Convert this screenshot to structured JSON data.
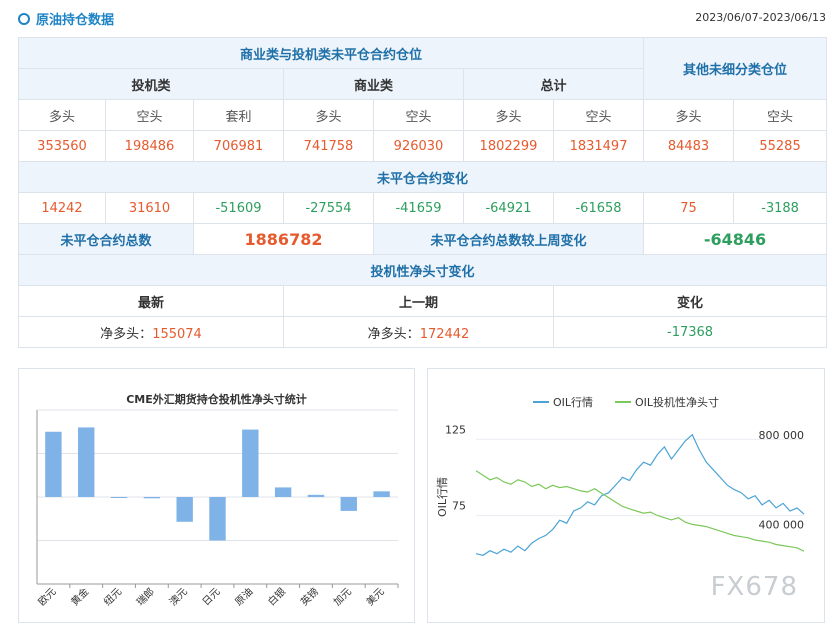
{
  "header": {
    "title": "原油持仓数据",
    "date_range": "2023/06/07-2023/06/13"
  },
  "table": {
    "group_title": "商业类与投机类未平仓合约仓位",
    "other_title": "其他未细分类仓位",
    "spec_label": "投机类",
    "comm_label": "商业类",
    "total_label": "总计",
    "cols": [
      "多头",
      "空头",
      "套利",
      "多头",
      "空头",
      "多头",
      "空头",
      "多头",
      "空头"
    ],
    "values": [
      "353560",
      "198486",
      "706981",
      "741758",
      "926030",
      "1802299",
      "1831497",
      "84483",
      "55285"
    ],
    "change_title": "未平仓合约变化",
    "changes": [
      "14242",
      "31610",
      "-51609",
      "-27554",
      "-41659",
      "-64921",
      "-61658",
      "75",
      "-3188"
    ],
    "oi_total_label": "未平仓合约总数",
    "oi_total_value": "1886782",
    "oi_change_label": "未平仓合约总数较上周变化",
    "oi_change_value": "-64846",
    "net_title": "投机性净头寸变化",
    "net_cols": [
      "最新",
      "上一期",
      "变化"
    ],
    "net_prefix": "净多头：",
    "net_latest": "155074",
    "net_prev": "172442",
    "net_change": "-17368"
  },
  "bar_chart": {
    "title": "CME外汇期货持仓投机性净头寸统计",
    "bar_color": "#7fb3e8",
    "chart_data": {
      "type": "bar",
      "categories": [
        "欧元",
        "黄金",
        "纽元",
        "瑞郎",
        "澳元",
        "日元",
        "原油",
        "白银",
        "英镑",
        "加元",
        "美元"
      ],
      "values": [
        150,
        160,
        0,
        -3,
        -57,
        -100,
        155,
        22,
        5,
        -32,
        13
      ],
      "ylim": [
        -200,
        200
      ]
    }
  },
  "line_chart": {
    "legend": [
      "OIL行情",
      "OIL投机性净头寸"
    ],
    "y_left_label": "OIL行情",
    "y_left_ticks": [
      "125",
      "75"
    ],
    "y_right_ticks": [
      "800 000",
      "400 000"
    ],
    "colors": {
      "price": "#4ba3d6",
      "position": "#7cc85a"
    },
    "chart_data": {
      "type": "line",
      "series": [
        {
          "name": "OIL行情",
          "axis": "left",
          "values": [
            50,
            49,
            52,
            50,
            53,
            51,
            55,
            52,
            57,
            60,
            62,
            66,
            72,
            70,
            78,
            80,
            84,
            82,
            88,
            90,
            95,
            100,
            98,
            105,
            110,
            108,
            115,
            120,
            112,
            118,
            124,
            128,
            118,
            110,
            105,
            100,
            95,
            92,
            90,
            86,
            88,
            82,
            85,
            80,
            83,
            78,
            80,
            76
          ]
        },
        {
          "name": "OIL投机性净头寸",
          "axis": "right",
          "values": [
            640000,
            620000,
            600000,
            610000,
            590000,
            580000,
            600000,
            590000,
            570000,
            580000,
            560000,
            575000,
            565000,
            570000,
            560000,
            550000,
            545000,
            560000,
            540000,
            520000,
            500000,
            480000,
            470000,
            460000,
            450000,
            455000,
            440000,
            430000,
            420000,
            430000,
            410000,
            400000,
            395000,
            390000,
            380000,
            370000,
            360000,
            350000,
            345000,
            340000,
            330000,
            325000,
            320000,
            310000,
            305000,
            300000,
            295000,
            280000
          ]
        }
      ],
      "ylim_left": [
        40,
        135
      ],
      "ylim_right": [
        200000,
        850000
      ]
    }
  },
  "watermark": "FX678"
}
